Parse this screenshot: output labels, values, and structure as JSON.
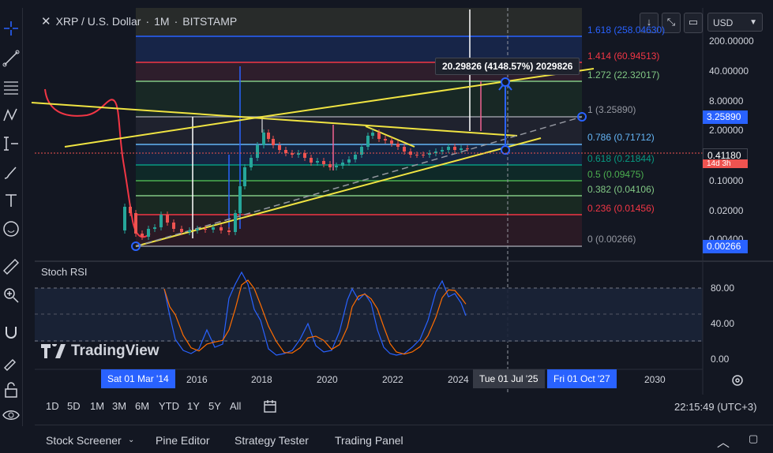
{
  "legend": {
    "symbol": "XRP / U.S. Dollar",
    "interval": "1M",
    "exchange": "BITSTAMP",
    "separator": "·"
  },
  "toolbar_top": {
    "currency": "USD"
  },
  "price_axis": {
    "labels": [
      "200.00000",
      "40.00000",
      "8.00000",
      "2.00000",
      "0.10000",
      "0.02000",
      "0.00400"
    ],
    "current_price": "0.41180",
    "current_price_sub": "14d 3h",
    "fib_top_badge": "3.25890",
    "fib_bottom_badge": "0.00266"
  },
  "fib_levels": [
    {
      "label": "1.618 (258.04630)",
      "color": "#2962ff"
    },
    {
      "label": "1.414 (60.94513)",
      "color": "#f23645"
    },
    {
      "label": "1.272 (22.32017)",
      "color": "#81c784"
    },
    {
      "label": "1 (3.25890)",
      "color": "#9598a1"
    },
    {
      "label": "0.786 (0.71712)",
      "color": "#64b5f6"
    },
    {
      "label": "0.618 (0.21844)",
      "color": "#089981"
    },
    {
      "label": "0.5 (0.09475)",
      "color": "#4caf50"
    },
    {
      "label": "0.382 (0.04106)",
      "color": "#81c784"
    },
    {
      "label": "0.236 (0.01456)",
      "color": "#f23645"
    },
    {
      "label": "0 (0.00266)",
      "color": "#9598a1"
    }
  ],
  "measure_label": "20.29826 (4148.57%) 2029826",
  "stoch": {
    "title": "Stoch RSI",
    "labels": [
      "80.00",
      "40.00",
      "0.00"
    ]
  },
  "watermark": "TradingView",
  "time_axis": {
    "start_badge": "Sat 01 Mar '14",
    "years": [
      "2016",
      "2018",
      "2020",
      "2022",
      "2024",
      "2030"
    ],
    "cursor_badge": "Tue 01 Jul '25",
    "end_badge": "Fri 01 Oct '27"
  },
  "periods": [
    "1D",
    "5D",
    "1M",
    "3M",
    "6M",
    "YTD",
    "1Y",
    "5Y",
    "All"
  ],
  "clock": "22:15:49 (UTC+3)",
  "bottom_tabs": [
    "Stock Screener",
    "Pine Editor",
    "Strategy Tester",
    "Trading Panel"
  ],
  "colors": {
    "background": "#131722",
    "accent_blue": "#2962ff",
    "trendline_yellow": "#f0e442",
    "fib_red": "#f23645",
    "up_candle": "#26a69a",
    "down_candle": "#ef5350"
  }
}
